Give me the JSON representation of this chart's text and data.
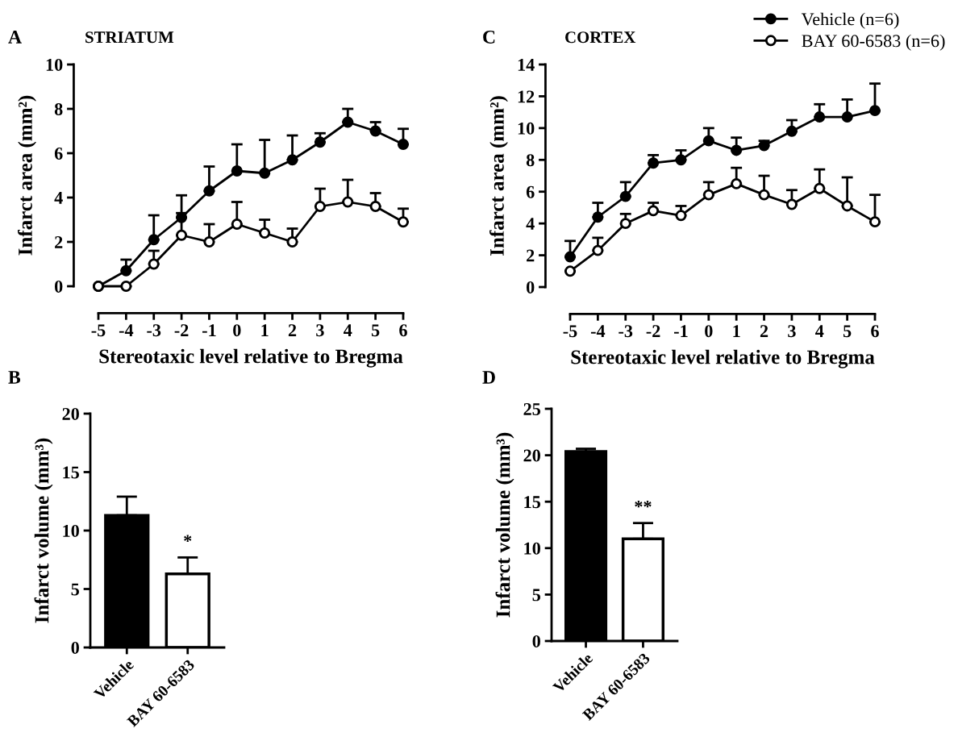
{
  "chart_data": [
    {
      "type": "line",
      "title": "STRIATUM",
      "annotations": [
        "A"
      ],
      "xlabel": "Stereotaxic level relative to Bregma",
      "ylabel": "Infarct area (mm²)",
      "x": [
        -5,
        -4,
        -3,
        -2,
        -1,
        0,
        1,
        2,
        3,
        4,
        5,
        6
      ],
      "marker": "circle",
      "line_style": "solid",
      "series": [
        {
          "color": "#000000",
          "values": [
            0,
            0.7,
            2.1,
            3.1,
            4.3,
            5.2,
            5.1,
            5.7,
            6.5,
            7.4,
            7.0,
            6.4
          ],
          "errors": [
            null,
            [
              0.7,
              1.2
            ],
            [
              2.1,
              3.2
            ],
            [
              3.1,
              4.1
            ],
            [
              4.3,
              5.4
            ],
            [
              5.2,
              6.4
            ],
            [
              5.1,
              6.6
            ],
            [
              5.7,
              6.8
            ],
            [
              6.5,
              6.9
            ],
            [
              7.4,
              8.0
            ],
            [
              7.0,
              7.4
            ],
            [
              6.4,
              7.1
            ]
          ]
        },
        {
          "color": "#ffffff",
          "values": [
            0,
            0,
            1.0,
            2.3,
            2.0,
            2.8,
            2.4,
            2.0,
            3.6,
            3.8,
            3.6,
            2.9
          ],
          "errors": [
            null,
            null,
            [
              1.0,
              1.6
            ],
            [
              2.3,
              3.3
            ],
            [
              2.0,
              2.8
            ],
            [
              2.8,
              3.8
            ],
            [
              2.4,
              3.0
            ],
            [
              2.0,
              2.6
            ],
            [
              3.6,
              4.4
            ],
            [
              3.8,
              4.8
            ],
            [
              3.6,
              4.2
            ],
            [
              2.9,
              3.5
            ]
          ]
        }
      ],
      "xlim": [
        -5,
        6
      ],
      "xticks": [
        -5,
        -4,
        -3,
        -2,
        -1,
        0,
        1,
        2,
        3,
        4,
        5,
        6
      ],
      "ylim": [
        0,
        10
      ],
      "yticks": [
        0,
        2,
        4,
        6,
        8,
        10
      ],
      "grid": false,
      "legend": false
    },
    {
      "type": "line",
      "title": "CORTEX",
      "annotations": [
        "C"
      ],
      "xlabel": "Stereotaxic level relative to Bregma",
      "ylabel": "Infarct area (mm²)",
      "x": [
        -5,
        -4,
        -3,
        -2,
        -1,
        0,
        1,
        2,
        3,
        4,
        5,
        6
      ],
      "marker": "circle",
      "line_style": "solid",
      "series": [
        {
          "name": "Vehicle (n=6)",
          "color": "#000000",
          "values": [
            1.9,
            4.4,
            5.7,
            7.8,
            8.0,
            9.2,
            8.6,
            8.9,
            9.8,
            10.7,
            10.7,
            11.1
          ],
          "errors": [
            [
              1.9,
              2.9
            ],
            [
              4.4,
              5.3
            ],
            [
              5.7,
              6.6
            ],
            [
              7.8,
              8.3
            ],
            [
              8.0,
              8.6
            ],
            [
              9.2,
              10.0
            ],
            [
              8.6,
              9.4
            ],
            [
              8.9,
              9.2
            ],
            [
              9.8,
              10.5
            ],
            [
              10.7,
              11.5
            ],
            [
              10.7,
              11.8
            ],
            [
              11.1,
              12.8
            ]
          ]
        },
        {
          "name": "BAY 60-6583 (n=6)",
          "color": "#ffffff",
          "values": [
            1.0,
            2.3,
            4.0,
            4.8,
            4.5,
            5.8,
            6.5,
            5.8,
            5.2,
            6.2,
            5.1,
            4.1
          ],
          "errors": [
            null,
            [
              2.3,
              3.1
            ],
            [
              4.0,
              4.6
            ],
            [
              4.8,
              5.3
            ],
            [
              4.5,
              5.1
            ],
            [
              5.8,
              6.6
            ],
            [
              6.5,
              7.5
            ],
            [
              5.8,
              7.0
            ],
            [
              5.2,
              6.1
            ],
            [
              6.2,
              7.4
            ],
            [
              5.1,
              6.9
            ],
            [
              4.1,
              5.8
            ]
          ]
        }
      ],
      "xlim": [
        -5,
        6
      ],
      "xticks": [
        -5,
        -4,
        -3,
        -2,
        -1,
        0,
        1,
        2,
        3,
        4,
        5,
        6
      ],
      "ylim": [
        0,
        14
      ],
      "yticks": [
        0,
        2,
        4,
        6,
        8,
        10,
        12,
        14
      ],
      "grid": false,
      "legend": "top right"
    },
    {
      "type": "bar",
      "annotations": [
        "B",
        "*"
      ],
      "ylabel": "Infarct volume (mm³)",
      "categories": [
        "Vehicle",
        "BAY 60-6583"
      ],
      "values": [
        11.3,
        6.3
      ],
      "colors": [
        "#000000",
        "#ffffff"
      ],
      "errors": [
        [
          11.3,
          12.9
        ],
        [
          6.3,
          7.7
        ]
      ],
      "ylim": [
        0,
        20
      ],
      "yticks": [
        0,
        5,
        10,
        15,
        20
      ],
      "grid": false,
      "legend": false
    },
    {
      "type": "bar",
      "annotations": [
        "D",
        "**"
      ],
      "ylabel": "Infarct volume (mm³)",
      "categories": [
        "Vehicle",
        "BAY 60-6583"
      ],
      "values": [
        20.4,
        11.0
      ],
      "colors": [
        "#000000",
        "#ffffff"
      ],
      "errors": [
        [
          20.4,
          20.7
        ],
        [
          11.0,
          12.7
        ]
      ],
      "ylim": [
        0,
        25
      ],
      "yticks": [
        0,
        5,
        10,
        15,
        20,
        25
      ],
      "grid": false,
      "legend": false
    }
  ]
}
